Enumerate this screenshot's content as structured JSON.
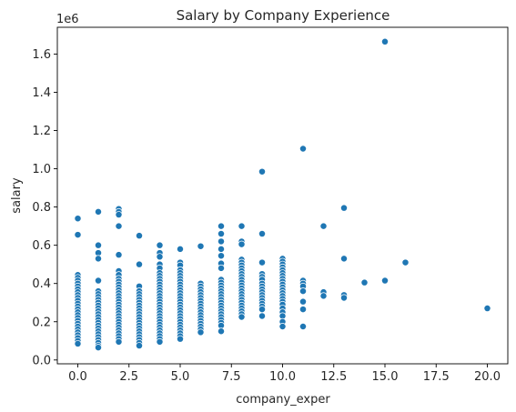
{
  "chart_data": {
    "type": "scatter",
    "title": "Salary by Company Experience",
    "xlabel": "company_exper",
    "ylabel": "salary",
    "y_offset_label": "1e6",
    "xlim": [
      -1,
      21
    ],
    "ylim": [
      -20000,
      1740000
    ],
    "x_ticks": [
      0.0,
      2.5,
      5.0,
      7.5,
      10.0,
      12.5,
      15.0,
      17.5,
      20.0
    ],
    "x_tick_labels": [
      "0.0",
      "2.5",
      "5.0",
      "7.5",
      "10.0",
      "12.5",
      "15.0",
      "17.5",
      "20.0"
    ],
    "y_ticks": [
      0,
      200000,
      400000,
      600000,
      800000,
      1000000,
      1200000,
      1400000,
      1600000
    ],
    "y_tick_labels": [
      "0.0",
      "0.2",
      "0.4",
      "0.6",
      "0.8",
      "1.0",
      "1.2",
      "1.4",
      "1.6"
    ],
    "grid": false,
    "marker_color": "#1f77b4",
    "marker_edge_color": "#ffffff",
    "points": [
      [
        0,
        740000
      ],
      [
        0,
        655000
      ],
      [
        0,
        445000
      ],
      [
        0,
        430000
      ],
      [
        0,
        415000
      ],
      [
        0,
        400000
      ],
      [
        0,
        385000
      ],
      [
        0,
        370000
      ],
      [
        0,
        355000
      ],
      [
        0,
        340000
      ],
      [
        0,
        325000
      ],
      [
        0,
        310000
      ],
      [
        0,
        295000
      ],
      [
        0,
        280000
      ],
      [
        0,
        265000
      ],
      [
        0,
        250000
      ],
      [
        0,
        235000
      ],
      [
        0,
        220000
      ],
      [
        0,
        205000
      ],
      [
        0,
        190000
      ],
      [
        0,
        175000
      ],
      [
        0,
        160000
      ],
      [
        0,
        145000
      ],
      [
        0,
        130000
      ],
      [
        0,
        115000
      ],
      [
        0,
        100000
      ],
      [
        0,
        85000
      ],
      [
        1,
        775000
      ],
      [
        1,
        600000
      ],
      [
        1,
        560000
      ],
      [
        1,
        530000
      ],
      [
        1,
        415000
      ],
      [
        1,
        360000
      ],
      [
        1,
        345000
      ],
      [
        1,
        330000
      ],
      [
        1,
        315000
      ],
      [
        1,
        300000
      ],
      [
        1,
        285000
      ],
      [
        1,
        270000
      ],
      [
        1,
        255000
      ],
      [
        1,
        240000
      ],
      [
        1,
        225000
      ],
      [
        1,
        210000
      ],
      [
        1,
        195000
      ],
      [
        1,
        180000
      ],
      [
        1,
        165000
      ],
      [
        1,
        150000
      ],
      [
        1,
        135000
      ],
      [
        1,
        120000
      ],
      [
        1,
        105000
      ],
      [
        1,
        90000
      ],
      [
        1,
        75000
      ],
      [
        1,
        65000
      ],
      [
        2,
        790000
      ],
      [
        2,
        775000
      ],
      [
        2,
        760000
      ],
      [
        2,
        700000
      ],
      [
        2,
        550000
      ],
      [
        2,
        465000
      ],
      [
        2,
        445000
      ],
      [
        2,
        425000
      ],
      [
        2,
        410000
      ],
      [
        2,
        395000
      ],
      [
        2,
        380000
      ],
      [
        2,
        365000
      ],
      [
        2,
        350000
      ],
      [
        2,
        335000
      ],
      [
        2,
        320000
      ],
      [
        2,
        305000
      ],
      [
        2,
        290000
      ],
      [
        2,
        275000
      ],
      [
        2,
        260000
      ],
      [
        2,
        245000
      ],
      [
        2,
        230000
      ],
      [
        2,
        215000
      ],
      [
        2,
        200000
      ],
      [
        2,
        185000
      ],
      [
        2,
        170000
      ],
      [
        2,
        155000
      ],
      [
        2,
        140000
      ],
      [
        2,
        125000
      ],
      [
        2,
        110000
      ],
      [
        2,
        95000
      ],
      [
        3,
        650000
      ],
      [
        3,
        500000
      ],
      [
        3,
        385000
      ],
      [
        3,
        360000
      ],
      [
        3,
        345000
      ],
      [
        3,
        330000
      ],
      [
        3,
        315000
      ],
      [
        3,
        300000
      ],
      [
        3,
        285000
      ],
      [
        3,
        270000
      ],
      [
        3,
        255000
      ],
      [
        3,
        240000
      ],
      [
        3,
        225000
      ],
      [
        3,
        210000
      ],
      [
        3,
        195000
      ],
      [
        3,
        180000
      ],
      [
        3,
        165000
      ],
      [
        3,
        150000
      ],
      [
        3,
        135000
      ],
      [
        3,
        120000
      ],
      [
        3,
        105000
      ],
      [
        3,
        90000
      ],
      [
        3,
        75000
      ],
      [
        4,
        600000
      ],
      [
        4,
        560000
      ],
      [
        4,
        540000
      ],
      [
        4,
        500000
      ],
      [
        4,
        480000
      ],
      [
        4,
        455000
      ],
      [
        4,
        440000
      ],
      [
        4,
        425000
      ],
      [
        4,
        410000
      ],
      [
        4,
        395000
      ],
      [
        4,
        380000
      ],
      [
        4,
        365000
      ],
      [
        4,
        350000
      ],
      [
        4,
        335000
      ],
      [
        4,
        320000
      ],
      [
        4,
        305000
      ],
      [
        4,
        290000
      ],
      [
        4,
        275000
      ],
      [
        4,
        260000
      ],
      [
        4,
        245000
      ],
      [
        4,
        230000
      ],
      [
        4,
        215000
      ],
      [
        4,
        200000
      ],
      [
        4,
        185000
      ],
      [
        4,
        170000
      ],
      [
        4,
        155000
      ],
      [
        4,
        140000
      ],
      [
        4,
        125000
      ],
      [
        4,
        110000
      ],
      [
        4,
        95000
      ],
      [
        5,
        580000
      ],
      [
        5,
        510000
      ],
      [
        5,
        495000
      ],
      [
        5,
        470000
      ],
      [
        5,
        455000
      ],
      [
        5,
        440000
      ],
      [
        5,
        425000
      ],
      [
        5,
        410000
      ],
      [
        5,
        395000
      ],
      [
        5,
        380000
      ],
      [
        5,
        365000
      ],
      [
        5,
        350000
      ],
      [
        5,
        335000
      ],
      [
        5,
        320000
      ],
      [
        5,
        305000
      ],
      [
        5,
        290000
      ],
      [
        5,
        275000
      ],
      [
        5,
        260000
      ],
      [
        5,
        245000
      ],
      [
        5,
        230000
      ],
      [
        5,
        215000
      ],
      [
        5,
        200000
      ],
      [
        5,
        185000
      ],
      [
        5,
        170000
      ],
      [
        5,
        155000
      ],
      [
        5,
        140000
      ],
      [
        5,
        125000
      ],
      [
        5,
        110000
      ],
      [
        6,
        595000
      ],
      [
        6,
        400000
      ],
      [
        6,
        385000
      ],
      [
        6,
        370000
      ],
      [
        6,
        355000
      ],
      [
        6,
        340000
      ],
      [
        6,
        325000
      ],
      [
        6,
        310000
      ],
      [
        6,
        295000
      ],
      [
        6,
        280000
      ],
      [
        6,
        265000
      ],
      [
        6,
        250000
      ],
      [
        6,
        235000
      ],
      [
        6,
        220000
      ],
      [
        6,
        205000
      ],
      [
        6,
        190000
      ],
      [
        6,
        175000
      ],
      [
        6,
        160000
      ],
      [
        6,
        145000
      ],
      [
        7,
        700000
      ],
      [
        7,
        660000
      ],
      [
        7,
        620000
      ],
      [
        7,
        580000
      ],
      [
        7,
        545000
      ],
      [
        7,
        505000
      ],
      [
        7,
        480000
      ],
      [
        7,
        420000
      ],
      [
        7,
        405000
      ],
      [
        7,
        390000
      ],
      [
        7,
        375000
      ],
      [
        7,
        360000
      ],
      [
        7,
        345000
      ],
      [
        7,
        330000
      ],
      [
        7,
        315000
      ],
      [
        7,
        300000
      ],
      [
        7,
        285000
      ],
      [
        7,
        270000
      ],
      [
        7,
        255000
      ],
      [
        7,
        240000
      ],
      [
        7,
        225000
      ],
      [
        7,
        210000
      ],
      [
        7,
        195000
      ],
      [
        7,
        180000
      ],
      [
        7,
        150000
      ],
      [
        8,
        700000
      ],
      [
        8,
        620000
      ],
      [
        8,
        605000
      ],
      [
        8,
        525000
      ],
      [
        8,
        510000
      ],
      [
        8,
        495000
      ],
      [
        8,
        480000
      ],
      [
        8,
        465000
      ],
      [
        8,
        450000
      ],
      [
        8,
        435000
      ],
      [
        8,
        420000
      ],
      [
        8,
        405000
      ],
      [
        8,
        390000
      ],
      [
        8,
        375000
      ],
      [
        8,
        360000
      ],
      [
        8,
        345000
      ],
      [
        8,
        330000
      ],
      [
        8,
        315000
      ],
      [
        8,
        300000
      ],
      [
        8,
        285000
      ],
      [
        8,
        270000
      ],
      [
        8,
        255000
      ],
      [
        8,
        240000
      ],
      [
        8,
        225000
      ],
      [
        9,
        985000
      ],
      [
        9,
        660000
      ],
      [
        9,
        510000
      ],
      [
        9,
        450000
      ],
      [
        9,
        435000
      ],
      [
        9,
        420000
      ],
      [
        9,
        400000
      ],
      [
        9,
        385000
      ],
      [
        9,
        370000
      ],
      [
        9,
        355000
      ],
      [
        9,
        340000
      ],
      [
        9,
        325000
      ],
      [
        9,
        310000
      ],
      [
        9,
        295000
      ],
      [
        9,
        280000
      ],
      [
        9,
        265000
      ],
      [
        9,
        230000
      ],
      [
        10,
        530000
      ],
      [
        10,
        515000
      ],
      [
        10,
        500000
      ],
      [
        10,
        485000
      ],
      [
        10,
        470000
      ],
      [
        10,
        455000
      ],
      [
        10,
        440000
      ],
      [
        10,
        425000
      ],
      [
        10,
        410000
      ],
      [
        10,
        395000
      ],
      [
        10,
        380000
      ],
      [
        10,
        365000
      ],
      [
        10,
        350000
      ],
      [
        10,
        335000
      ],
      [
        10,
        320000
      ],
      [
        10,
        305000
      ],
      [
        10,
        290000
      ],
      [
        10,
        270000
      ],
      [
        10,
        250000
      ],
      [
        10,
        230000
      ],
      [
        10,
        200000
      ],
      [
        10,
        175000
      ],
      [
        11,
        1105000
      ],
      [
        11,
        415000
      ],
      [
        11,
        400000
      ],
      [
        11,
        385000
      ],
      [
        11,
        360000
      ],
      [
        11,
        305000
      ],
      [
        11,
        265000
      ],
      [
        11,
        175000
      ],
      [
        12,
        700000
      ],
      [
        12,
        355000
      ],
      [
        12,
        335000
      ],
      [
        13,
        795000
      ],
      [
        13,
        530000
      ],
      [
        13,
        340000
      ],
      [
        13,
        325000
      ],
      [
        14,
        405000
      ],
      [
        15,
        1665000
      ],
      [
        15,
        415000
      ],
      [
        16,
        510000
      ],
      [
        20,
        270000
      ]
    ]
  }
}
